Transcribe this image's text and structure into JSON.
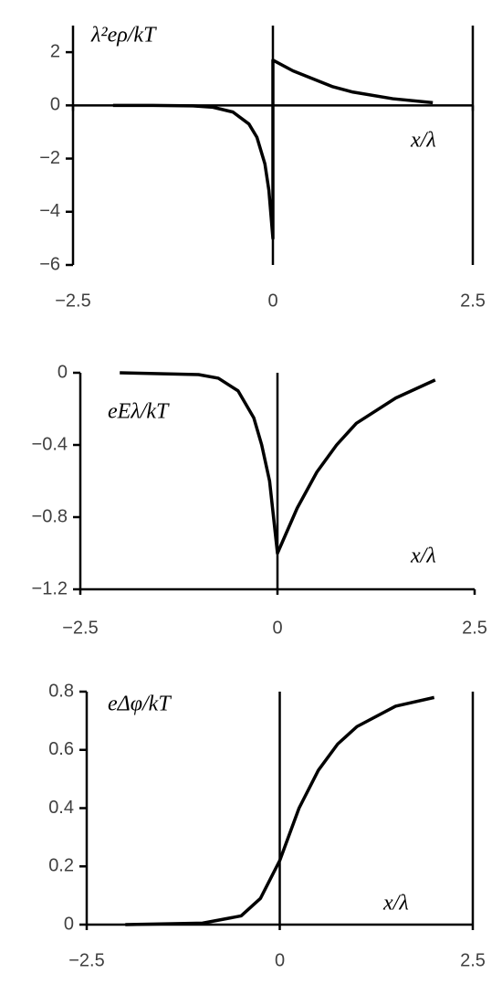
{
  "chart_data": [
    {
      "type": "line",
      "annotations": [
        "λ²eρ/kT",
        "x/λ"
      ],
      "xlim": [
        -2.5,
        2.5
      ],
      "ylim": [
        -6,
        3
      ],
      "xticks": [
        {
          "value": -2.5,
          "label": "−2.5"
        },
        0,
        2.5
      ],
      "yticks": [
        {
          "value": -6,
          "label": "−6"
        },
        {
          "value": -4,
          "label": "−4"
        },
        {
          "value": -2,
          "label": "−2"
        },
        0,
        2
      ],
      "series": [
        {
          "color": "#000000",
          "x": [
            -2,
            -1.5,
            -1,
            -0.75,
            -0.5,
            -0.3,
            -0.2,
            -0.1,
            -0.05,
            0,
            0,
            0.25,
            0.5,
            0.75,
            1,
            1.5,
            2
          ],
          "values": [
            0,
            0,
            -0.02,
            -0.07,
            -0.25,
            -0.7,
            -1.2,
            -2.2,
            -3.2,
            -5,
            1.7,
            1.3,
            1.0,
            0.7,
            0.5,
            0.25,
            0.1
          ]
        }
      ]
    },
    {
      "type": "line",
      "annotations": [
        "eEλ/kT",
        "x/λ"
      ],
      "xlim": [
        -2.5,
        2.5
      ],
      "ylim": [
        -1.2,
        0
      ],
      "xticks": [
        {
          "value": -2.5,
          "label": "−2.5"
        },
        0,
        2.5
      ],
      "yticks": [
        {
          "value": -1.2,
          "label": "−1.2"
        },
        {
          "value": -0.8,
          "label": "−0.8"
        },
        {
          "value": -0.4,
          "label": "−0.4"
        },
        0
      ],
      "series": [
        {
          "color": "#000000",
          "x": [
            -2,
            -1,
            -0.75,
            -0.5,
            -0.3,
            -0.2,
            -0.1,
            0,
            0.1,
            0.25,
            0.5,
            0.75,
            1,
            1.5,
            2
          ],
          "values": [
            0,
            -0.01,
            -0.03,
            -0.1,
            -0.25,
            -0.4,
            -0.6,
            -1.0,
            -0.9,
            -0.75,
            -0.55,
            -0.4,
            -0.28,
            -0.14,
            -0.04
          ]
        }
      ]
    },
    {
      "type": "line",
      "annotations": [
        "eΔφ/kT",
        "x/λ"
      ],
      "xlim": [
        -2.5,
        2.5
      ],
      "ylim": [
        0,
        0.8
      ],
      "xticks": [
        {
          "value": -2.5,
          "label": "−2.5"
        },
        0,
        2.5
      ],
      "yticks": [
        0,
        0.2,
        0.4,
        0.6,
        0.8
      ],
      "series": [
        {
          "color": "#000000",
          "x": [
            -2,
            -1,
            -0.5,
            -0.25,
            0,
            0.25,
            0.5,
            0.75,
            1,
            1.5,
            2
          ],
          "values": [
            0,
            0.005,
            0.03,
            0.09,
            0.22,
            0.4,
            0.53,
            0.62,
            0.68,
            0.75,
            0.78
          ]
        }
      ]
    }
  ]
}
